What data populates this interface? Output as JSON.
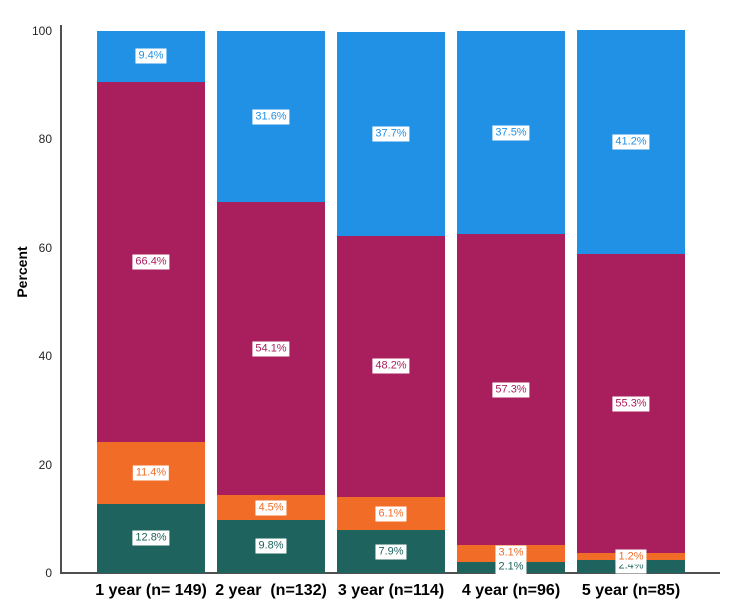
{
  "chart_data": {
    "type": "bar",
    "stacked": true,
    "orientation": "vertical",
    "title": "",
    "xlabel": "",
    "ylabel": "Percent",
    "ylim": [
      0,
      100
    ],
    "yticks": [
      0,
      20,
      40,
      60,
      80,
      100
    ],
    "grid": false,
    "legend": "none",
    "categories": [
      "1 year (n= 149)",
      "2 year  (n=132)",
      "3 year (n=114)",
      "4 year (n=96)",
      "5 year (n=85)"
    ],
    "series": [
      {
        "name": "teal-bottom-segment",
        "color": "#1E635D",
        "values": [
          12.8,
          9.8,
          7.9,
          2.1,
          2.4
        ],
        "labels": [
          "12.8%",
          "9.8%",
          "7.9%",
          "2.1%",
          "2.4%"
        ]
      },
      {
        "name": "orange-segment",
        "color": "#F16C27",
        "values": [
          11.4,
          4.5,
          6.1,
          3.1,
          1.2
        ],
        "labels": [
          "11.4%",
          "4.5%",
          "6.1%",
          "3.1%",
          "1.2%"
        ]
      },
      {
        "name": "magenta-segment",
        "color": "#A91E5D",
        "values": [
          66.4,
          54.1,
          48.2,
          57.3,
          55.3
        ],
        "labels": [
          "66.4%",
          "54.1%",
          "48.2%",
          "57.3%",
          "55.3%"
        ]
      },
      {
        "name": "blue-top-segment",
        "color": "#2191E6",
        "values": [
          9.4,
          31.6,
          37.7,
          37.5,
          41.2
        ],
        "labels": [
          "9.4%",
          "31.6%",
          "37.7%",
          "37.5%",
          "41.2%"
        ]
      }
    ]
  }
}
